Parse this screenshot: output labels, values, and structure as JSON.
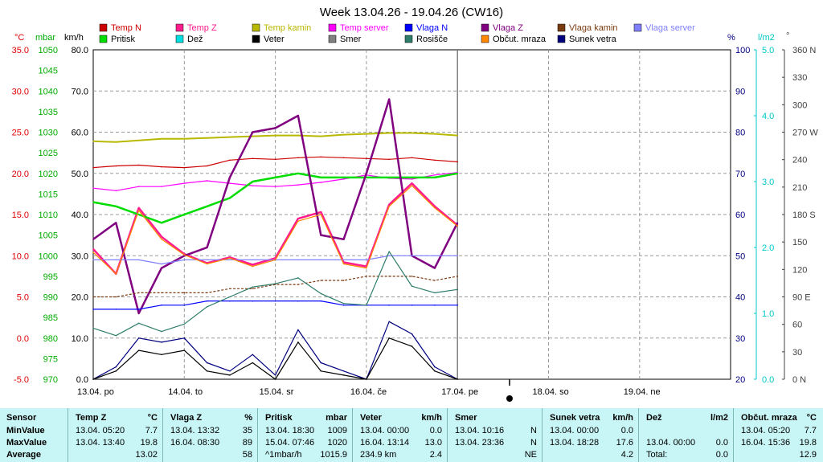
{
  "title": "Week 13.04.26 - 19.04.26 (CW16)",
  "legend": [
    {
      "label": "Temp N",
      "color": "#cc0000"
    },
    {
      "label": "Temp Z",
      "color": "#ff1c8c"
    },
    {
      "label": "Temp kamin",
      "color": "#b8b800"
    },
    {
      "label": "Temp server",
      "color": "#ff00ff"
    },
    {
      "label": "Vlaga N",
      "color": "#0000ff"
    },
    {
      "label": "Vlaga Z",
      "color": "#800080"
    },
    {
      "label": "Vlaga kamin",
      "color": "#7a3a10"
    },
    {
      "label": "Vlaga server",
      "color": "#8080ff"
    },
    {
      "label": "Pritisk",
      "color": "#00dd00"
    },
    {
      "label": "Dež",
      "color": "#00e0e0"
    },
    {
      "label": "Veter",
      "color": "#000000"
    },
    {
      "label": "Smer",
      "color": "#808080"
    },
    {
      "label": "Rosišče",
      "color": "#2e7d6a"
    },
    {
      "label": "Občut. mraza",
      "color": "#ff8800"
    },
    {
      "label": "Sunek vetra",
      "color": "#00007f"
    }
  ],
  "axes": {
    "temp": {
      "unit": "°C",
      "ticks": [
        "35.0",
        "30.0",
        "25.0",
        "20.0",
        "15.0",
        "10.0",
        "5.0",
        "0.0",
        "-5.0"
      ],
      "color": "#e00000"
    },
    "pressure": {
      "unit": "mbar",
      "ticks": [
        "1050",
        "1045",
        "1040",
        "1035",
        "1030",
        "1025",
        "1020",
        "1015",
        "1010",
        "1005",
        "1000",
        "995",
        "990",
        "985",
        "980",
        "975",
        "970"
      ],
      "color": "#00aa00"
    },
    "wind": {
      "unit": "km/h",
      "ticks": [
        "80.0",
        "70.0",
        "60.0",
        "50.0",
        "40.0",
        "30.0",
        "20.0",
        "10.0",
        "0.0"
      ],
      "color": "#000000"
    },
    "humidity": {
      "unit": "%",
      "ticks": [
        "100",
        "90",
        "80",
        "70",
        "60",
        "50",
        "40",
        "30",
        "20"
      ],
      "color": "#000080"
    },
    "rain": {
      "unit": "l/m2",
      "ticks": [
        "5.0",
        "4.0",
        "3.0",
        "2.0",
        "1.0",
        "0.0"
      ],
      "color": "#00c8c8"
    },
    "direction": {
      "unit": "°",
      "ticks": [
        "360 N",
        "330",
        "300",
        "270 W",
        "240",
        "210",
        "180 S",
        "150",
        "120",
        "90 E",
        "60",
        "30",
        "0 N"
      ],
      "color": "#404040"
    },
    "x_ticks": [
      "13.04. po",
      "14.04. to",
      "15.04. sr",
      "16.04. če",
      "17.04. pe",
      "18.04. so",
      "19.04. ne"
    ]
  },
  "chart_data": {
    "type": "line",
    "title": "Week 13.04.26 - 19.04.26 (CW16)",
    "x": [
      0,
      0.25,
      0.5,
      0.75,
      1,
      1.25,
      1.5,
      1.75,
      2,
      2.25,
      2.5,
      2.75,
      3,
      3.25,
      3.5,
      3.75,
      4
    ],
    "x_unit": "days since 13.04.",
    "series": [
      {
        "name": "Temp N",
        "axis": "°C",
        "values": [
          20.7,
          20.9,
          21.0,
          20.8,
          20.7,
          20.9,
          21.6,
          21.8,
          21.7,
          21.9,
          22.0,
          21.9,
          21.8,
          21.7,
          21.9,
          21.6,
          21.4
        ]
      },
      {
        "name": "Temp Z",
        "axis": "°C",
        "values": [
          10.8,
          7.8,
          15.8,
          12.3,
          10.2,
          9.1,
          9.8,
          8.9,
          9.7,
          14.5,
          15.3,
          9.2,
          8.7,
          16.2,
          18.8,
          16.0,
          13.7
        ]
      },
      {
        "name": "Temp kamin",
        "axis": "°C",
        "values": [
          23.9,
          23.8,
          24.0,
          24.2,
          24.2,
          24.3,
          24.4,
          24.5,
          24.6,
          24.6,
          24.5,
          24.7,
          24.8,
          24.9,
          24.9,
          24.8,
          24.6
        ]
      },
      {
        "name": "Temp server",
        "axis": "°C",
        "values": [
          18.2,
          17.9,
          18.4,
          18.4,
          18.8,
          19.1,
          18.8,
          18.5,
          18.4,
          18.6,
          18.9,
          19.3,
          19.8,
          19.4,
          19.3,
          19.8,
          20.1
        ]
      },
      {
        "name": "Pritisk",
        "axis": "mbar",
        "values": [
          1013,
          1012,
          1010,
          1008,
          1010,
          1012,
          1014,
          1018,
          1019,
          1020,
          1019,
          1019,
          1019,
          1019,
          1019,
          1019,
          1020
        ]
      },
      {
        "name": "Vlaga Z",
        "axis": "%",
        "values": [
          54,
          58,
          36,
          47,
          50,
          52,
          69,
          80,
          81,
          84,
          55,
          54,
          70,
          88,
          50,
          47,
          58
        ]
      },
      {
        "name": "Vlaga N",
        "axis": "%",
        "values": [
          37,
          37,
          37,
          38,
          38,
          39,
          39,
          39,
          39,
          39,
          39,
          38,
          38,
          38,
          38,
          38,
          38
        ]
      },
      {
        "name": "Vlaga server",
        "axis": "%",
        "values": [
          49,
          49,
          49,
          48,
          49,
          49,
          49,
          49,
          49,
          49,
          49,
          49,
          49,
          50,
          50,
          50,
          50
        ]
      },
      {
        "name": "Vlaga kamin",
        "axis": "%",
        "values": [
          40,
          40,
          41,
          41,
          41,
          41,
          42,
          42,
          43,
          43,
          44,
          44,
          45,
          45,
          45,
          44,
          45
        ]
      },
      {
        "name": "Rosišče",
        "axis": "°C",
        "values": [
          1.2,
          0.3,
          1.8,
          0.8,
          1.7,
          3.8,
          5.0,
          6.2,
          6.6,
          7.3,
          5.4,
          4.2,
          4.0,
          10.5,
          6.3,
          5.5,
          5.9
        ]
      },
      {
        "name": "Občut. mraza",
        "axis": "°C",
        "values": [
          10.4,
          7.8,
          15.5,
          12.0,
          10.1,
          9.0,
          9.7,
          8.7,
          9.5,
          14.2,
          15.0,
          9.0,
          8.5,
          16.0,
          18.5,
          15.8,
          13.6
        ]
      },
      {
        "name": "Sunek vetra",
        "axis": "km/h",
        "values": [
          0,
          3,
          10,
          9,
          10,
          4,
          2,
          6,
          1,
          12,
          4,
          2,
          0,
          14,
          11,
          3,
          0
        ]
      },
      {
        "name": "Veter",
        "axis": "km/h",
        "values": [
          0,
          2,
          7,
          6,
          7,
          2,
          1,
          4,
          0,
          9,
          2,
          1,
          0,
          10,
          8,
          2,
          0
        ]
      }
    ]
  },
  "stats": {
    "headers": [
      {
        "label": "Sensor",
        "unit": ""
      },
      {
        "label": "Temp Z",
        "unit": "°C"
      },
      {
        "label": "Vlaga Z",
        "unit": "%"
      },
      {
        "label": "Pritisk",
        "unit": "mbar"
      },
      {
        "label": "Veter",
        "unit": "km/h"
      },
      {
        "label": "Smer",
        "unit": ""
      },
      {
        "label": "Sunek vetra",
        "unit": "km/h"
      },
      {
        "label": "Dež",
        "unit": "l/m2"
      },
      {
        "label": "Občut. mraza",
        "unit": "°C"
      }
    ],
    "row_labels": [
      "MinValue",
      "MaxValue",
      "Average"
    ],
    "rows": [
      [
        [
          "13.04.  05:20",
          "7.7"
        ],
        [
          "13.04.  13:32",
          "35"
        ],
        [
          "13.04.  18:30",
          "1009"
        ],
        [
          "13.04.  00:00",
          "0.0"
        ],
        [
          "13.04.  10:16",
          "N"
        ],
        [
          "13.04.  00:00",
          "0.0"
        ],
        [
          "",
          ""
        ],
        [
          "13.04.  05:20",
          "7.7"
        ]
      ],
      [
        [
          "13.04.  13:40",
          "19.8"
        ],
        [
          "16.04.  08:30",
          "89"
        ],
        [
          "15.04.  07:46",
          "1020"
        ],
        [
          "16.04.  13:14",
          "13.0"
        ],
        [
          "13.04.  23:36",
          "N"
        ],
        [
          "13.04.  18:28",
          "17.6"
        ],
        [
          "13.04.  00:00",
          "0.0"
        ],
        [
          "16.04.  15:36",
          "19.8"
        ]
      ],
      [
        [
          "",
          "13.02"
        ],
        [
          "",
          "58"
        ],
        [
          "^1mbar/h",
          "1015.9"
        ],
        [
          "234.9 km",
          "2.4"
        ],
        [
          "",
          "NE"
        ],
        [
          "",
          "4.2"
        ],
        [
          "Total:",
          "0.0"
        ],
        [
          "",
          "12.9"
        ]
      ]
    ]
  }
}
